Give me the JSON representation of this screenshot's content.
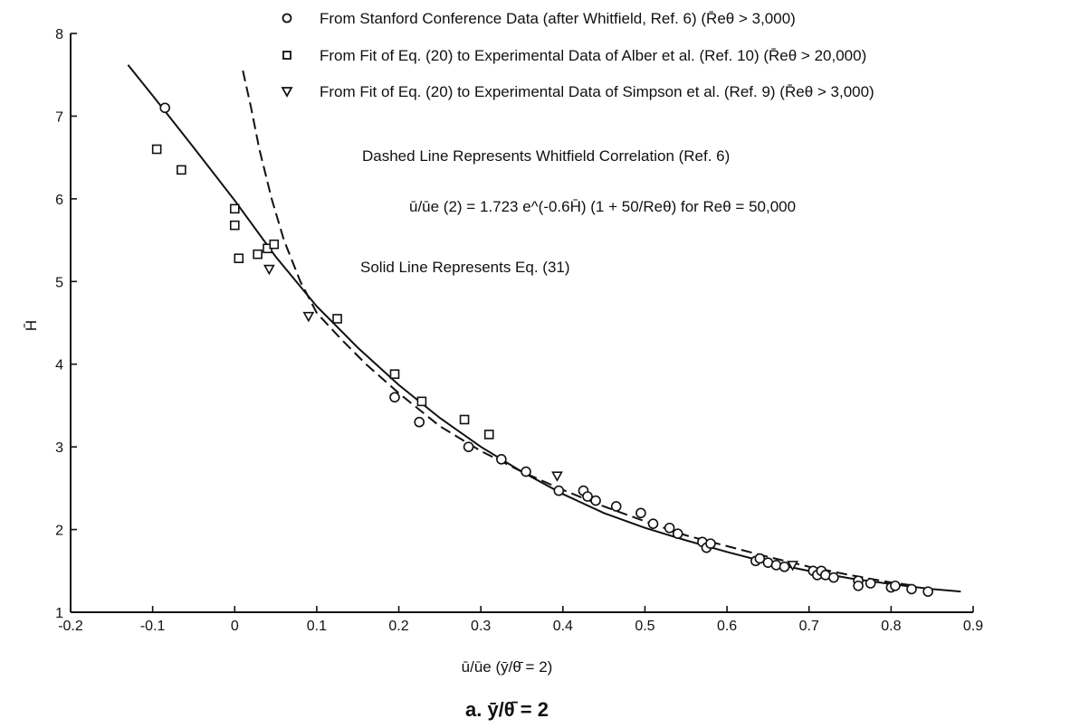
{
  "chart_data": {
    "type": "scatter",
    "xlim": [
      -0.2,
      0.9
    ],
    "ylim": [
      1,
      8
    ],
    "grid": false,
    "legend_position": "top-right",
    "x_tick_labels": [
      "-0.2",
      "-0.1",
      "0",
      "0.1",
      "0.2",
      "0.3",
      "0.4",
      "0.5",
      "0.6",
      "0.7",
      "0.8",
      "0.9"
    ],
    "x_ticks": [
      -0.2,
      -0.1,
      0,
      0.1,
      0.2,
      0.3,
      0.4,
      0.5,
      0.6,
      0.7,
      0.8,
      0.9
    ],
    "y_tick_labels": [
      "1",
      "2",
      "3",
      "4",
      "5",
      "6",
      "7",
      "8"
    ],
    "y_ticks": [
      1,
      2,
      3,
      4,
      5,
      6,
      7,
      8
    ],
    "xlabel": "ū/ūe (ȳ/θ̄ = 2)",
    "ylabel": "H̄",
    "caption": "a.  ȳ/θ̄ = 2",
    "annotations": {
      "dashed_note": "Dashed Line Represents Whitfield Correlation (Ref. 6)",
      "equation": "ū/ūe (2) = 1.723 e^(-0.6H̄) (1 + 50/Reθ) for Reθ = 50,000",
      "solid_note": "Solid Line Represents Eq. (31)"
    },
    "series": [
      {
        "name": "From Stanford Conference Data (after Whitfield, Ref. 6) (R̄eθ > 3,000)",
        "marker": "circle",
        "points": [
          [
            -0.085,
            7.1
          ],
          [
            0.195,
            3.6
          ],
          [
            0.225,
            3.3
          ],
          [
            0.285,
            3.0
          ],
          [
            0.325,
            2.85
          ],
          [
            0.355,
            2.7
          ],
          [
            0.395,
            2.47
          ],
          [
            0.425,
            2.47
          ],
          [
            0.43,
            2.4
          ],
          [
            0.44,
            2.35
          ],
          [
            0.465,
            2.28
          ],
          [
            0.495,
            2.2
          ],
          [
            0.51,
            2.07
          ],
          [
            0.53,
            2.02
          ],
          [
            0.54,
            1.95
          ],
          [
            0.57,
            1.85
          ],
          [
            0.575,
            1.78
          ],
          [
            0.58,
            1.83
          ],
          [
            0.635,
            1.62
          ],
          [
            0.64,
            1.65
          ],
          [
            0.65,
            1.6
          ],
          [
            0.66,
            1.57
          ],
          [
            0.67,
            1.55
          ],
          [
            0.705,
            1.5
          ],
          [
            0.71,
            1.45
          ],
          [
            0.715,
            1.5
          ],
          [
            0.72,
            1.45
          ],
          [
            0.73,
            1.42
          ],
          [
            0.76,
            1.38
          ],
          [
            0.76,
            1.32
          ],
          [
            0.775,
            1.35
          ],
          [
            0.8,
            1.3
          ],
          [
            0.805,
            1.32
          ],
          [
            0.825,
            1.28
          ],
          [
            0.845,
            1.25
          ]
        ]
      },
      {
        "name": "From Fit of Eq. (20) to Experimental Data of Alber et al. (Ref. 10) (R̄eθ > 20,000)",
        "marker": "square",
        "points": [
          [
            -0.095,
            6.6
          ],
          [
            -0.065,
            6.35
          ],
          [
            0.0,
            5.88
          ],
          [
            0.0,
            5.68
          ],
          [
            0.005,
            5.28
          ],
          [
            0.028,
            5.33
          ],
          [
            0.04,
            5.4
          ],
          [
            0.048,
            5.45
          ],
          [
            0.125,
            4.55
          ],
          [
            0.195,
            3.88
          ],
          [
            0.228,
            3.55
          ],
          [
            0.28,
            3.33
          ],
          [
            0.31,
            3.15
          ]
        ]
      },
      {
        "name": "From Fit of Eq. (20) to Experimental Data of Simpson et al. (Ref. 9) (R̄eθ > 3,000)",
        "marker": "triangle",
        "points": [
          [
            0.042,
            5.15
          ],
          [
            0.09,
            4.58
          ],
          [
            0.393,
            2.65
          ],
          [
            0.68,
            1.57
          ]
        ]
      }
    ],
    "lines": [
      {
        "name": "Solid Line Represents Eq. (31)",
        "style": "solid",
        "points": [
          [
            -0.13,
            7.62
          ],
          [
            -0.1,
            7.25
          ],
          [
            -0.05,
            6.62
          ],
          [
            0.0,
            5.98
          ],
          [
            0.05,
            5.3
          ],
          [
            0.1,
            4.7
          ],
          [
            0.15,
            4.2
          ],
          [
            0.2,
            3.75
          ],
          [
            0.25,
            3.35
          ],
          [
            0.3,
            3.0
          ],
          [
            0.35,
            2.7
          ],
          [
            0.4,
            2.43
          ],
          [
            0.45,
            2.2
          ],
          [
            0.5,
            2.02
          ],
          [
            0.55,
            1.87
          ],
          [
            0.6,
            1.73
          ],
          [
            0.65,
            1.6
          ],
          [
            0.7,
            1.5
          ],
          [
            0.75,
            1.41
          ],
          [
            0.8,
            1.34
          ],
          [
            0.85,
            1.28
          ],
          [
            0.885,
            1.25
          ]
        ]
      },
      {
        "name": "Dashed Line Represents Whitfield Correlation (Ref. 6)",
        "style": "dashed",
        "points": [
          [
            0.01,
            7.55
          ],
          [
            0.02,
            7.1
          ],
          [
            0.03,
            6.6
          ],
          [
            0.045,
            6.0
          ],
          [
            0.06,
            5.5
          ],
          [
            0.08,
            5.0
          ],
          [
            0.1,
            4.62
          ],
          [
            0.13,
            4.3
          ],
          [
            0.16,
            4.0
          ],
          [
            0.2,
            3.65
          ],
          [
            0.25,
            3.25
          ],
          [
            0.3,
            2.95
          ],
          [
            0.35,
            2.7
          ],
          [
            0.4,
            2.48
          ],
          [
            0.45,
            2.28
          ],
          [
            0.5,
            2.1
          ],
          [
            0.55,
            1.93
          ],
          [
            0.6,
            1.8
          ],
          [
            0.65,
            1.67
          ],
          [
            0.7,
            1.55
          ],
          [
            0.75,
            1.45
          ],
          [
            0.8,
            1.36
          ],
          [
            0.83,
            1.32
          ]
        ]
      }
    ]
  }
}
